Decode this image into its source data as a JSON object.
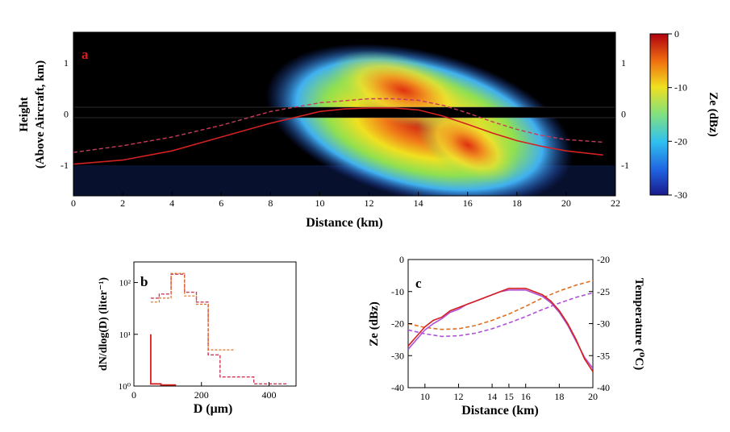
{
  "figure": {
    "panel_a": {
      "panel_label": "a",
      "ylabel_line1": "Height",
      "ylabel_line2": "(Above Aircraft, km)",
      "xlabel": "Distance (km)",
      "colorbar_label": "Ze (dBz)",
      "x_ticks": [
        "0",
        "2",
        "4",
        "6",
        "8",
        "10",
        "12",
        "14",
        "16",
        "18",
        "20",
        "22"
      ],
      "y_ticks": [
        "1",
        "0",
        "-1"
      ],
      "cb_ticks": [
        "0",
        "-10",
        "-20",
        "-30"
      ]
    },
    "panel_b": {
      "panel_label": "b",
      "ylabel": "dN/dlog(D) (liter⁻¹)",
      "xlabel": "D (μm)",
      "x_ticks": [
        "0",
        "200",
        "400"
      ],
      "y_ticks": [
        "10²",
        "10¹",
        "10⁰"
      ]
    },
    "panel_c": {
      "panel_label": "c",
      "ylabel_left": "Ze (dBz)",
      "ylabel_right": "Temperature (⁰C)",
      "xlabel": "Distance (km)",
      "x_ticks": [
        "10",
        "12",
        "14",
        "15",
        "16",
        "18",
        "20"
      ],
      "y_ticks_left": [
        "0",
        "-10",
        "-20",
        "-30",
        "-40"
      ],
      "y_ticks_right": [
        "-20",
        "-25",
        "-30",
        "-35",
        "-40"
      ]
    }
  },
  "colors": {
    "plot_background_a": "#000000",
    "red_solid": "#d42020",
    "red_dashed": "#c83a5a",
    "magenta": "#b050d8",
    "orange": "#e07020",
    "axis": "#000000"
  },
  "chart_data": [
    {
      "type": "heatmap",
      "panel": "a",
      "x_range": [
        0,
        22
      ],
      "y_range": [
        -1.6,
        1.6
      ],
      "colorbar_range": [
        -30,
        0
      ],
      "colormap": "jet",
      "series": [
        {
          "style": "solid",
          "color": "#d42020",
          "x": [
            0,
            2,
            4,
            6,
            8,
            10,
            11,
            12,
            13,
            14,
            15,
            16,
            17,
            18,
            19,
            20,
            21.5
          ],
          "y": [
            -0.98,
            -0.9,
            -0.72,
            -0.45,
            -0.18,
            0.05,
            0.1,
            0.12,
            0.12,
            0.08,
            -0.04,
            -0.2,
            -0.37,
            -0.52,
            -0.63,
            -0.72,
            -0.8
          ]
        },
        {
          "style": "dashed",
          "color": "#c83a5a",
          "x": [
            0,
            2,
            4,
            6,
            8,
            10,
            12,
            13,
            14,
            15,
            16,
            17,
            18,
            19,
            20,
            21.5
          ],
          "y": [
            -0.75,
            -0.62,
            -0.45,
            -0.22,
            0.05,
            0.22,
            0.3,
            0.3,
            0.27,
            0.17,
            0.02,
            -0.15,
            -0.3,
            -0.42,
            -0.5,
            -0.55
          ]
        }
      ]
    },
    {
      "type": "line",
      "panel": "b",
      "xlim": [
        0,
        480
      ],
      "yscale": "log",
      "ylim": [
        1,
        250
      ],
      "series": [
        {
          "style": "solid",
          "color": "#d42020",
          "x": [
            50,
            50,
            80,
            80,
            125
          ],
          "y": [
            10,
            1.1,
            1.1,
            1.05,
            1.05
          ]
        },
        {
          "style": "dashed",
          "color": "#c83a5a",
          "x": [
            50,
            75,
            75,
            110,
            110,
            150,
            150,
            185,
            185,
            220,
            220,
            255,
            255,
            300,
            300,
            355,
            355,
            455
          ],
          "y": [
            50,
            50,
            60,
            60,
            145,
            145,
            65,
            65,
            42,
            42,
            4,
            4,
            1.5,
            1.5,
            1.5,
            1.5,
            1.1,
            1.1
          ]
        },
        {
          "style": "dashed",
          "color": "#e07020",
          "x": [
            50,
            75,
            75,
            110,
            110,
            150,
            150,
            185,
            185,
            220,
            220,
            255,
            255,
            300
          ],
          "y": [
            42,
            42,
            50,
            50,
            150,
            150,
            55,
            55,
            38,
            38,
            5,
            5,
            5,
            5
          ]
        }
      ]
    },
    {
      "type": "line",
      "panel": "c",
      "xlim": [
        9,
        20
      ],
      "ylim_left": [
        -40,
        0
      ],
      "ylim_right": [
        -40,
        -20
      ],
      "series": [
        {
          "axis": "left",
          "color": "#d42020",
          "x": [
            9,
            9.5,
            10,
            10.5,
            11,
            11.5,
            12,
            12.5,
            13,
            13.5,
            14,
            14.5,
            15,
            15.5,
            16,
            16.5,
            17,
            17.5,
            18,
            18.5,
            19,
            19.5,
            20
          ],
          "y": [
            -27,
            -24,
            -21,
            -19,
            -18,
            -16,
            -15,
            -14,
            -13,
            -12,
            -11,
            -10,
            -9,
            -9,
            -9,
            -10,
            -11,
            -13,
            -16,
            -20,
            -25,
            -31,
            -35
          ]
        },
        {
          "axis": "left",
          "color": "#b050d8",
          "x": [
            9,
            9.5,
            10,
            10.5,
            11,
            11.5,
            12,
            12.5,
            13,
            13.5,
            14,
            14.5,
            15,
            15.5,
            16,
            16.5,
            17,
            17.5,
            18,
            18.5,
            19,
            19.5,
            20
          ],
          "y": [
            -28,
            -25,
            -22,
            -20,
            -18.5,
            -16.5,
            -15.5,
            -14,
            -13,
            -12,
            -11,
            -10,
            -9.5,
            -9.5,
            -9.5,
            -10.5,
            -11.5,
            -13.5,
            -16.5,
            -20.5,
            -25.5,
            -30.5,
            -34
          ]
        },
        {
          "axis": "right",
          "style": "dashed",
          "color": "#e07020",
          "x": [
            9,
            10,
            11,
            12,
            13,
            14,
            15,
            16,
            17,
            18,
            19,
            20
          ],
          "y": [
            -30,
            -30.6,
            -30.9,
            -30.8,
            -30.3,
            -29.5,
            -28.5,
            -27.3,
            -26,
            -24.9,
            -24,
            -23.3
          ]
        },
        {
          "axis": "right",
          "style": "dashed",
          "color": "#b050d8",
          "x": [
            9,
            10,
            11,
            12,
            13,
            14,
            15,
            16,
            17,
            18,
            19,
            20
          ],
          "y": [
            -31,
            -31.6,
            -32,
            -31.9,
            -31.5,
            -30.8,
            -29.9,
            -28.9,
            -27.8,
            -26.8,
            -25.9,
            -25.2
          ]
        }
      ]
    }
  ]
}
